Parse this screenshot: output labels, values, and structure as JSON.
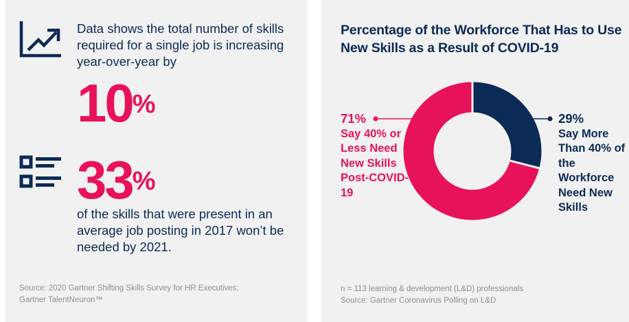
{
  "colors": {
    "accent_pink": "#e8125a",
    "navy": "#0b2a55",
    "panel_bg": "#f1f1f1",
    "source_text": "#8e8e8e"
  },
  "left": {
    "stat1": {
      "icon": "trending-up-chart-icon",
      "text": "Data shows the total number of skills required for a single job is increasing year-over-year by",
      "value": "10",
      "unit": "%"
    },
    "stat2": {
      "icon": "checklist-icon",
      "value": "33",
      "unit": "%",
      "text": "of the skills that were present in an average job posting in 2017 won’t be needed by 2021."
    },
    "source_line1": "Source: 2020 Gartner Shifting Skills Survey for HR Executives;",
    "source_line2": "Gartner TalentNeuron™"
  },
  "right": {
    "source_line1": "n = 113 learning & development (L&D) professionals",
    "source_line2": "Source: Gartner Coronavirus Polling on L&D"
  },
  "chart_data": {
    "type": "pie",
    "variant": "donut",
    "title": "Percentage of the Workforce That Has to Use New Skills as a Result of COVID-19",
    "start_angle": "12 o'clock, clockwise",
    "slices": [
      {
        "name": "more_than_40",
        "value": 29,
        "value_label": "29%",
        "label": "Say More Than 40% of the Workforce Need New Skills",
        "color": "#0b2a55",
        "legend_placement": "right"
      },
      {
        "name": "40_or_less",
        "value": 71,
        "value_label": "71%",
        "label": "Say 40% or Less Need New Skills Post-COVID-19",
        "color": "#e8125a",
        "legend_placement": "left"
      }
    ]
  }
}
